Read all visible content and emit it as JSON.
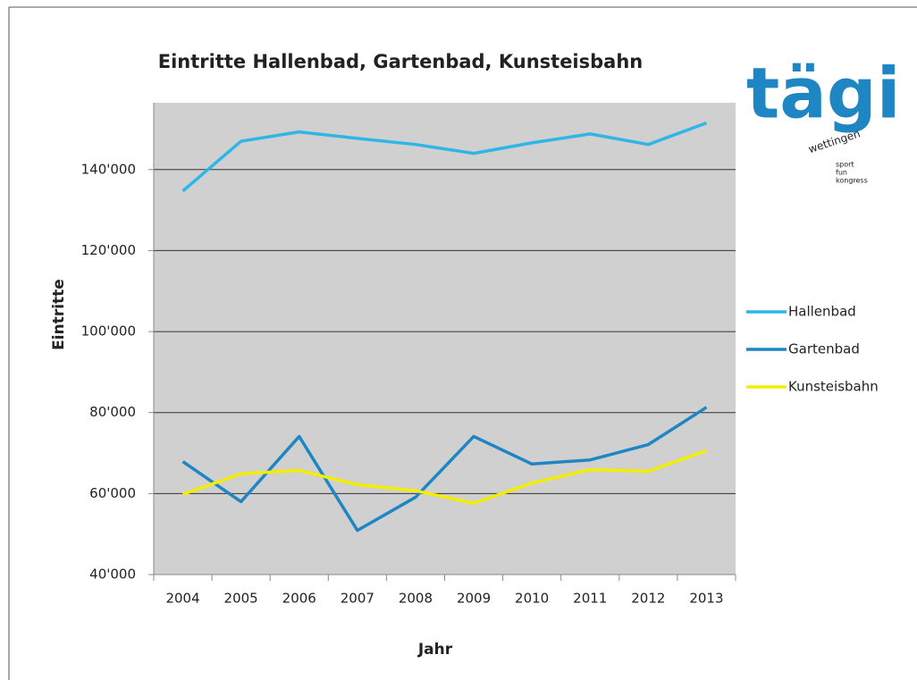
{
  "chart_data": {
    "type": "line",
    "title": "Eintritte Hallenbad, Gartenbad, Kunsteisbahn",
    "x_label": "Jahr",
    "y_label": "Eintritte",
    "categories": [
      "2004",
      "2005",
      "2006",
      "2007",
      "2008",
      "2009",
      "2010",
      "2011",
      "2012",
      "2013"
    ],
    "series": [
      {
        "name": "Hallenbad",
        "color": "#2fb5e6",
        "values": [
          134700,
          147000,
          149300,
          147700,
          146200,
          144000,
          146600,
          148800,
          146200,
          151500
        ]
      },
      {
        "name": "Gartenbad",
        "color": "#1f86c4",
        "values": [
          67900,
          58000,
          74100,
          50900,
          59100,
          74100,
          67300,
          68300,
          72100,
          81300
        ]
      },
      {
        "name": "Kunsteisbahn",
        "color": "#f2ee00",
        "values": [
          59800,
          64900,
          65700,
          62200,
          60700,
          57600,
          62600,
          65900,
          65500,
          70600
        ]
      }
    ],
    "ylim": [
      40000,
      156500
    ],
    "yticks": [
      {
        "value": 40000,
        "label": "40'000"
      },
      {
        "value": 60000,
        "label": "60'000"
      },
      {
        "value": 80000,
        "label": "80'000"
      },
      {
        "value": 100000,
        "label": "100'000"
      },
      {
        "value": 120000,
        "label": "120'000"
      },
      {
        "value": 140000,
        "label": "140'000"
      }
    ],
    "grid": true,
    "legend": "right"
  },
  "logo": {
    "name": "tägi",
    "place": "wettingen",
    "words": [
      "sport",
      "fun",
      "kongress"
    ]
  }
}
